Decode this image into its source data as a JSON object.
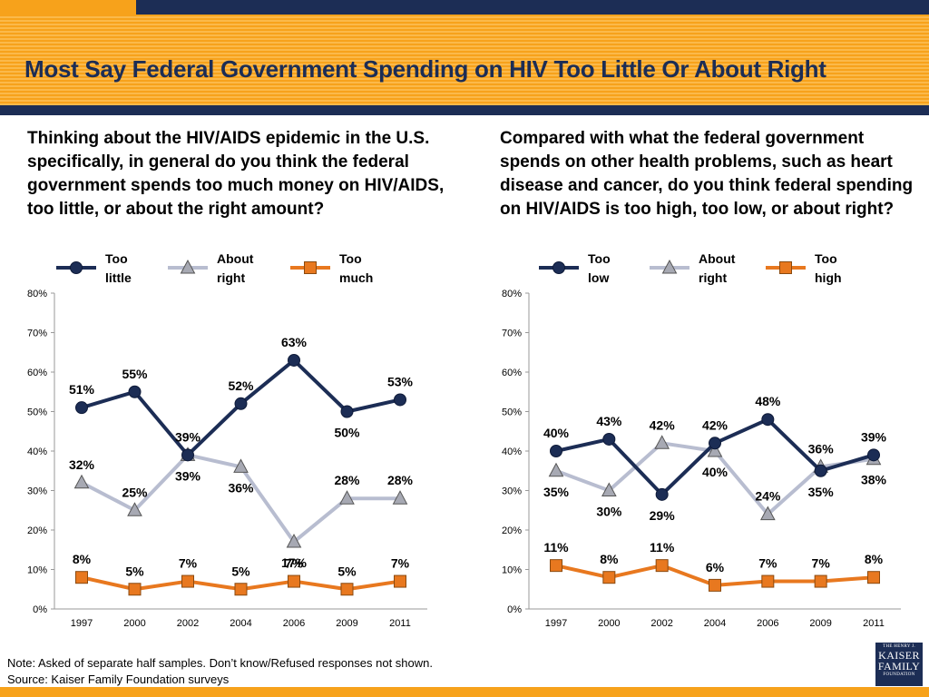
{
  "header": {
    "title": "Most Say Federal Government Spending on HIV Too Little Or About Right"
  },
  "colors": {
    "navy": "#1c2d55",
    "gray": "#b8bdd0",
    "orange": "#e8781f"
  },
  "chart_data": [
    {
      "type": "line",
      "question": "Thinking about the HIV/AIDS epidemic in the U.S. specifically, in general do you think the federal government spends too much money on HIV/AIDS, too little, or about the right amount?",
      "categories": [
        "1997",
        "2000",
        "2002",
        "2004",
        "2006",
        "2009",
        "2011"
      ],
      "y_ticks": [
        "0%",
        "10%",
        "20%",
        "30%",
        "40%",
        "50%",
        "60%",
        "70%",
        "80%"
      ],
      "ylim": [
        0,
        80
      ],
      "legend_position": "top",
      "series": [
        {
          "name_line1": "Too",
          "name_line2": "little",
          "marker": "circle",
          "color": "#1c2d55",
          "values": [
            51,
            55,
            39,
            52,
            63,
            50,
            53
          ],
          "labels": [
            "51%",
            "55%",
            "39%",
            "52%",
            "63%",
            "50%",
            "53%"
          ],
          "label_pos": [
            "above",
            "above",
            "above",
            "above",
            "above",
            "below",
            "above"
          ]
        },
        {
          "name_line1": "About",
          "name_line2": "right",
          "marker": "triangle",
          "color": "#b8bdd0",
          "values": [
            32,
            25,
            39,
            36,
            17,
            28,
            28
          ],
          "labels": [
            "32%",
            "25%",
            "39%",
            "36%",
            "17%",
            "28%",
            "28%"
          ],
          "label_pos": [
            "above",
            "above",
            "below",
            "below",
            "below",
            "above",
            "above"
          ]
        },
        {
          "name_line1": "Too",
          "name_line2": "much",
          "marker": "square",
          "color": "#e8781f",
          "values": [
            8,
            5,
            7,
            5,
            7,
            5,
            7
          ],
          "labels": [
            "8%",
            "5%",
            "7%",
            "5%",
            "7%",
            "5%",
            "7%"
          ],
          "label_pos": [
            "above",
            "above",
            "above",
            "above",
            "above",
            "above",
            "above"
          ]
        }
      ]
    },
    {
      "type": "line",
      "question": "Compared with what the federal government spends on other health problems, such as heart disease and cancer, do you think federal spending on HIV/AIDS is too high, too low, or about right?",
      "categories": [
        "1997",
        "2000",
        "2002",
        "2004",
        "2006",
        "2009",
        "2011"
      ],
      "y_ticks": [
        "0%",
        "10%",
        "20%",
        "30%",
        "40%",
        "50%",
        "60%",
        "70%",
        "80%"
      ],
      "ylim": [
        0,
        80
      ],
      "legend_position": "top",
      "series": [
        {
          "name_line1": "Too",
          "name_line2": "low",
          "marker": "circle",
          "color": "#1c2d55",
          "values": [
            40,
            43,
            29,
            42,
            48,
            35,
            39
          ],
          "labels": [
            "40%",
            "43%",
            "29%",
            "42%",
            "48%",
            "35%",
            "39%"
          ],
          "label_pos": [
            "above",
            "above",
            "below",
            "above",
            "above",
            "below",
            "above"
          ]
        },
        {
          "name_line1": "About",
          "name_line2": "right",
          "marker": "triangle",
          "color": "#b8bdd0",
          "values": [
            35,
            30,
            42,
            40,
            24,
            36,
            38
          ],
          "labels": [
            "35%",
            "30%",
            "42%",
            "40%",
            "24%",
            "36%",
            "38%"
          ],
          "label_pos": [
            "below",
            "below",
            "above",
            "below",
            "above",
            "above",
            "below"
          ]
        },
        {
          "name_line1": "Too",
          "name_line2": "high",
          "marker": "square",
          "color": "#e8781f",
          "values": [
            11,
            8,
            11,
            6,
            7,
            7,
            8
          ],
          "labels": [
            "11%",
            "8%",
            "11%",
            "6%",
            "7%",
            "7%",
            "8%"
          ],
          "label_pos": [
            "above",
            "above",
            "above",
            "above",
            "above",
            "above",
            "above"
          ]
        }
      ]
    }
  ],
  "footer": {
    "note": "Note: Asked of separate half samples. Don’t know/Refused responses not shown.",
    "source": "Source: Kaiser Family Foundation surveys"
  },
  "logo": {
    "line1": "THE HENRY J.",
    "line2": "KAISER",
    "line3": "FAMILY",
    "line4": "FOUNDATION"
  }
}
